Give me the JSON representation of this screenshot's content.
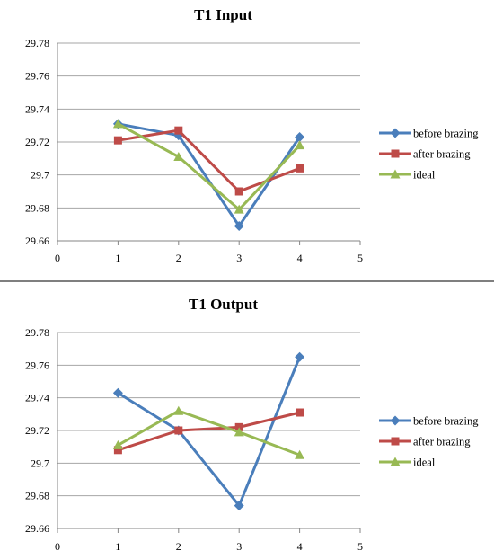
{
  "chart_data": [
    {
      "type": "line",
      "title": "T1 Input",
      "xlabel": "",
      "ylabel": "",
      "xlim": [
        0,
        5
      ],
      "ylim": [
        29.66,
        29.78
      ],
      "x_ticks": [
        "0",
        "1",
        "2",
        "3",
        "4",
        "5"
      ],
      "y_ticks": [
        "29.66",
        "29.68",
        "29.7",
        "29.72",
        "29.74",
        "29.76",
        "29.78"
      ],
      "grid": "horizontal",
      "legend": "right",
      "x": [
        1,
        2,
        3,
        4
      ],
      "series": [
        {
          "name": "before brazing",
          "color": "#4a7ebb",
          "marker": "diamond",
          "values": [
            29.731,
            29.724,
            29.669,
            29.723
          ]
        },
        {
          "name": "after brazing",
          "color": "#be4b48",
          "marker": "square",
          "values": [
            29.721,
            29.727,
            29.69,
            29.704
          ]
        },
        {
          "name": "ideal",
          "color": "#98b954",
          "marker": "triangle",
          "values": [
            29.731,
            29.711,
            29.679,
            29.718
          ]
        }
      ]
    },
    {
      "type": "line",
      "title": "T1 Output",
      "xlabel": "",
      "ylabel": "",
      "xlim": [
        0,
        5
      ],
      "ylim": [
        29.66,
        29.78
      ],
      "x_ticks": [
        "0",
        "1",
        "2",
        "3",
        "4",
        "5"
      ],
      "y_ticks": [
        "29.66",
        "29.68",
        "29.7",
        "29.72",
        "29.74",
        "29.76",
        "29.78"
      ],
      "grid": "horizontal",
      "legend": "right",
      "x": [
        1,
        2,
        3,
        4
      ],
      "series": [
        {
          "name": "before brazing",
          "color": "#4a7ebb",
          "marker": "diamond",
          "values": [
            29.743,
            29.72,
            29.674,
            29.765
          ]
        },
        {
          "name": "after brazing",
          "color": "#be4b48",
          "marker": "square",
          "values": [
            29.708,
            29.72,
            29.722,
            29.731
          ]
        },
        {
          "name": "ideal",
          "color": "#98b954",
          "marker": "triangle",
          "values": [
            29.711,
            29.732,
            29.719,
            29.705
          ]
        }
      ]
    }
  ]
}
